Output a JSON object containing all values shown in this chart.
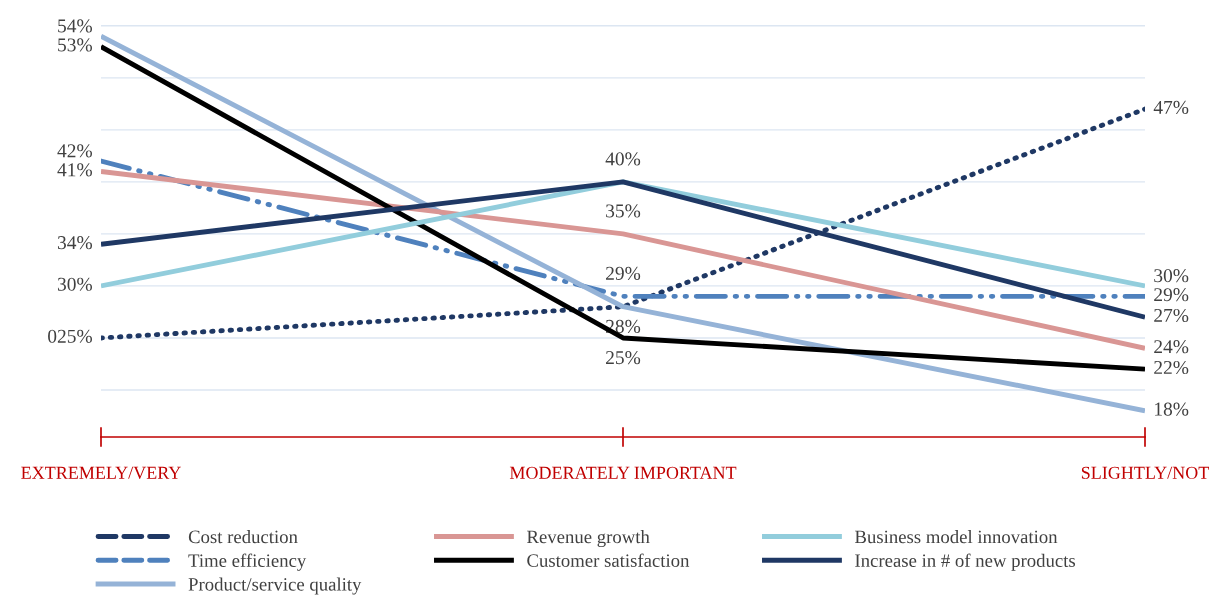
{
  "chart_data": {
    "type": "line",
    "categories": [
      "EXTREMELY/VERY",
      "MODERATELY IMPORTANT",
      "SLIGHTLY/NOT"
    ],
    "grid": "y",
    "legend": "bottom",
    "tick_labels": "x",
    "marker": "none",
    "series": [
      {
        "name": "Cost reduction",
        "color": "#1f3864",
        "line_style": "dotted",
        "values": [
          25,
          28,
          47
        ],
        "value_labels": [
          "025%",
          null,
          "47%"
        ]
      },
      {
        "name": "Time efficiency",
        "color": "#4f81bd",
        "line_style": "dashed",
        "values": [
          42,
          29,
          29
        ],
        "value_labels": [
          "42%",
          "29%",
          "29%"
        ]
      },
      {
        "name": "Product/service quality",
        "color": "#95b3d7",
        "line_style": "solid",
        "values": [
          54,
          28,
          18
        ],
        "value_labels": [
          "54%",
          "28%",
          "18%"
        ]
      },
      {
        "name": "Revenue growth",
        "color": "#d99694",
        "line_style": "solid",
        "values": [
          41,
          35,
          24
        ],
        "value_labels": [
          "41%",
          "35%",
          "24%"
        ]
      },
      {
        "name": "Customer satisfaction",
        "color": "#000000",
        "line_style": "solid",
        "values": [
          53,
          25,
          22
        ],
        "value_labels": [
          "53%",
          "25%",
          "22%"
        ]
      },
      {
        "name": "Business model innovation",
        "color": "#92cddc",
        "line_style": "solid",
        "values": [
          30,
          40,
          30
        ],
        "value_labels": [
          "30%",
          "40%",
          "30%"
        ]
      },
      {
        "name": "Increase in # of new products",
        "color": "#1f3864",
        "line_style": "solid",
        "values": [
          34,
          40,
          27
        ],
        "value_labels": [
          "34%",
          null,
          "27%"
        ]
      }
    ]
  }
}
